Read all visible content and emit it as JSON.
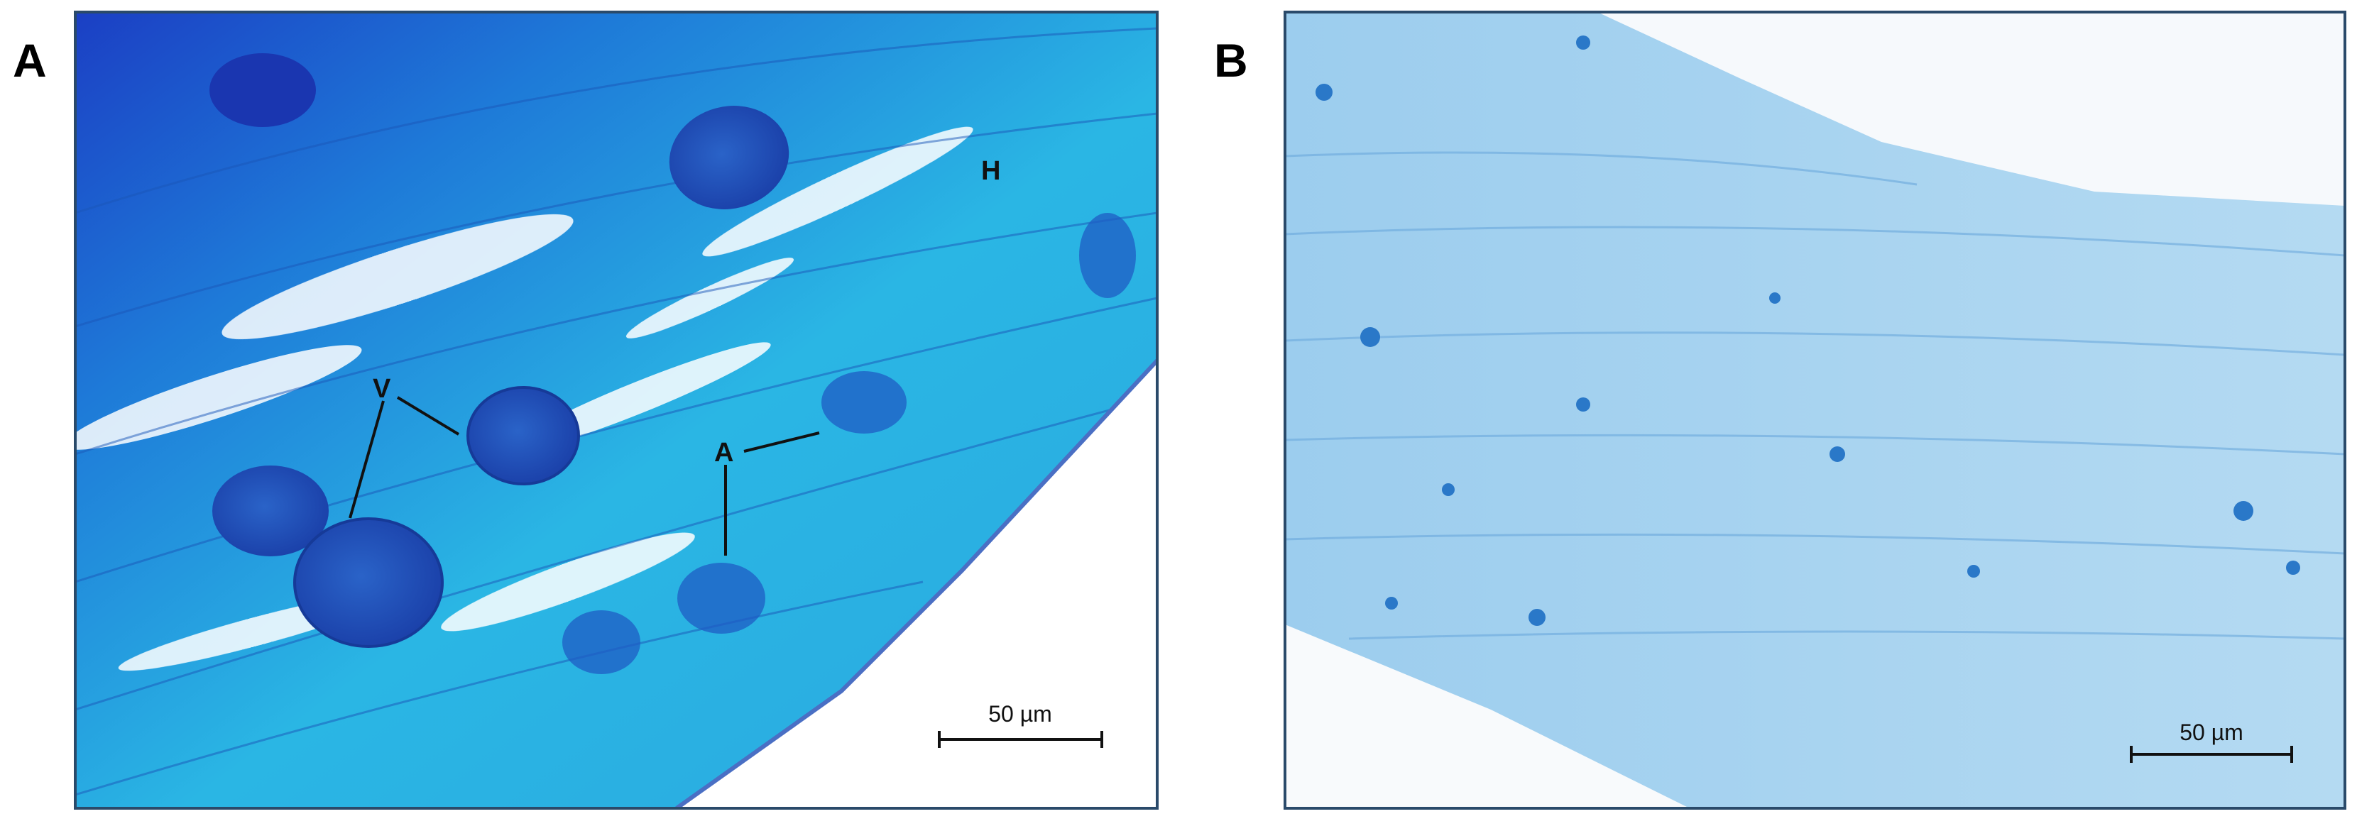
{
  "panels": [
    {
      "label": "A",
      "annotations": [
        "V",
        "H",
        "A"
      ],
      "scale_bar": "50 µm"
    },
    {
      "label": "B",
      "scale_bar": "50 µm"
    }
  ]
}
